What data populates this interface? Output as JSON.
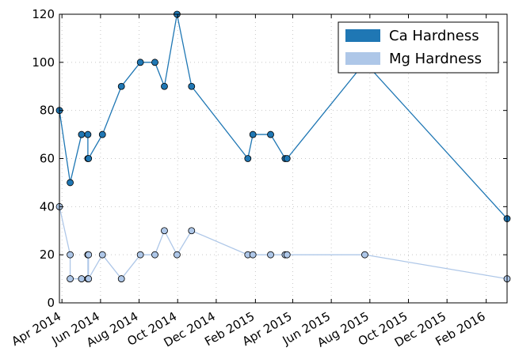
{
  "chart_data": {
    "type": "line",
    "x_type": "date",
    "xlim": [
      "2014-03-28",
      "2016-03-05"
    ],
    "ylim": [
      0,
      120
    ],
    "xticks": [
      {
        "date": "2014-04-01",
        "label": "Apr 2014"
      },
      {
        "date": "2014-06-01",
        "label": "Jun 2014"
      },
      {
        "date": "2014-08-01",
        "label": "Aug 2014"
      },
      {
        "date": "2014-10-01",
        "label": "Oct 2014"
      },
      {
        "date": "2014-12-01",
        "label": "Dec 2014"
      },
      {
        "date": "2015-02-01",
        "label": "Feb 2015"
      },
      {
        "date": "2015-04-01",
        "label": "Apr 2015"
      },
      {
        "date": "2015-06-01",
        "label": "Jun 2015"
      },
      {
        "date": "2015-08-01",
        "label": "Aug 2015"
      },
      {
        "date": "2015-10-01",
        "label": "Oct 2015"
      },
      {
        "date": "2015-12-01",
        "label": "Dec 2015"
      },
      {
        "date": "2016-02-01",
        "label": "Feb 2016"
      }
    ],
    "yticks": [
      0,
      20,
      40,
      60,
      80,
      100,
      120
    ],
    "grid": true,
    "legend_position": "top-right",
    "title": "",
    "xlabel": "",
    "ylabel": "",
    "series": [
      {
        "name": "Ca Hardness",
        "color": "#1f77b4",
        "points": [
          {
            "x": "2014-03-28",
            "y": 80
          },
          {
            "x": "2014-04-14",
            "y": 50
          },
          {
            "x": "2014-05-02",
            "y": 70
          },
          {
            "x": "2014-05-12",
            "y": 70
          },
          {
            "x": "2014-05-12",
            "y": 60
          },
          {
            "x": "2014-05-13",
            "y": 60
          },
          {
            "x": "2014-06-04",
            "y": 70
          },
          {
            "x": "2014-07-04",
            "y": 90
          },
          {
            "x": "2014-08-03",
            "y": 100
          },
          {
            "x": "2014-08-26",
            "y": 100
          },
          {
            "x": "2014-09-10",
            "y": 90
          },
          {
            "x": "2014-09-30",
            "y": 120
          },
          {
            "x": "2014-10-23",
            "y": 90
          },
          {
            "x": "2015-01-20",
            "y": 60
          },
          {
            "x": "2015-01-28",
            "y": 70
          },
          {
            "x": "2015-02-25",
            "y": 70
          },
          {
            "x": "2015-03-20",
            "y": 60
          },
          {
            "x": "2015-03-23",
            "y": 60
          },
          {
            "x": "2015-07-24",
            "y": 100
          },
          {
            "x": "2016-03-05",
            "y": 35
          }
        ]
      },
      {
        "name": "Mg Hardness",
        "color": "#aec7e8",
        "points": [
          {
            "x": "2014-03-28",
            "y": 40
          },
          {
            "x": "2014-04-14",
            "y": 20
          },
          {
            "x": "2014-04-14",
            "y": 10
          },
          {
            "x": "2014-05-02",
            "y": 10
          },
          {
            "x": "2014-05-12",
            "y": 10
          },
          {
            "x": "2014-05-12",
            "y": 20
          },
          {
            "x": "2014-05-13",
            "y": 20
          },
          {
            "x": "2014-05-13",
            "y": 10
          },
          {
            "x": "2014-06-04",
            "y": 20
          },
          {
            "x": "2014-07-04",
            "y": 10
          },
          {
            "x": "2014-08-03",
            "y": 20
          },
          {
            "x": "2014-08-26",
            "y": 20
          },
          {
            "x": "2014-09-10",
            "y": 30
          },
          {
            "x": "2014-09-30",
            "y": 20
          },
          {
            "x": "2014-10-23",
            "y": 30
          },
          {
            "x": "2015-01-20",
            "y": 20
          },
          {
            "x": "2015-01-28",
            "y": 20
          },
          {
            "x": "2015-02-25",
            "y": 20
          },
          {
            "x": "2015-03-20",
            "y": 20
          },
          {
            "x": "2015-03-23",
            "y": 20
          },
          {
            "x": "2015-07-24",
            "y": 20
          },
          {
            "x": "2016-03-05",
            "y": 10
          }
        ]
      }
    ]
  }
}
